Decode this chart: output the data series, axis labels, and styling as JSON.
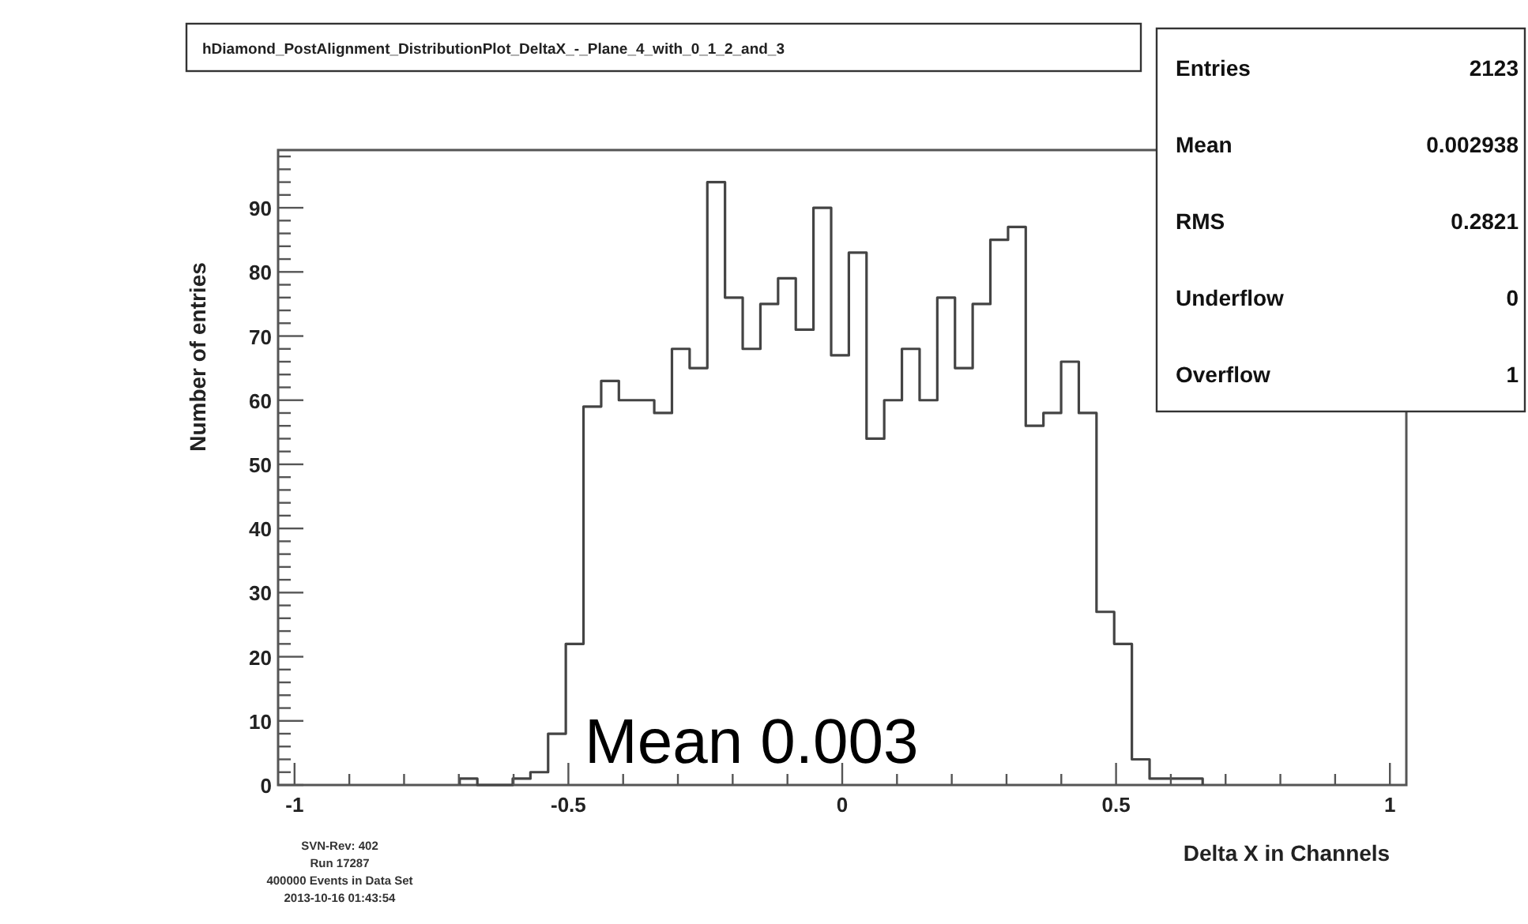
{
  "chart_data": {
    "type": "histogram",
    "title": "hDiamond_PostAlignment_DistributionPlot_DeltaX_-_Plane_4_with_0_1_2_and_3",
    "xlabel": "Delta X in Channels",
    "ylabel": "Number of entries",
    "bins": [
      -0.6985,
      -0.6662,
      -0.6339,
      -0.6016,
      -0.5693,
      -0.537,
      -0.5047,
      -0.4724,
      -0.4401,
      -0.4078,
      -0.3755,
      -0.3432,
      -0.3109,
      -0.2786,
      -0.2463,
      -0.214,
      -0.1817,
      -0.1494,
      -0.1171,
      -0.0848,
      -0.0525,
      -0.0202,
      0.0121,
      0.0444,
      0.0767,
      0.109,
      0.1413,
      0.1736,
      0.2059,
      0.2382,
      0.2705,
      0.3028,
      0.3351,
      0.3674,
      0.3997,
      0.432,
      0.4643,
      0.4966,
      0.5289,
      0.5612,
      0.5935,
      0.6258,
      0.6581
    ],
    "values": [
      1,
      0,
      0,
      1,
      2,
      8,
      22,
      59,
      63,
      60,
      60,
      58,
      68,
      65,
      94,
      76,
      68,
      75,
      79,
      71,
      90,
      67,
      83,
      54,
      60,
      68,
      60,
      76,
      65,
      75,
      85,
      87,
      56,
      58,
      66,
      58,
      27,
      22,
      4,
      1,
      1,
      1
    ],
    "color": "#444444",
    "xlim": [
      -1.03,
      1.03
    ],
    "xticks": [
      -1,
      {
        "value": -0.9,
        "label": null
      },
      {
        "value": -0.8,
        "label": null
      },
      {
        "value": -0.7,
        "label": null
      },
      {
        "value": -0.6,
        "label": null
      },
      -0.5,
      {
        "value": -0.4,
        "label": null
      },
      {
        "value": -0.3,
        "label": null
      },
      {
        "value": -0.2,
        "label": null
      },
      {
        "value": -0.1,
        "label": null
      },
      0,
      {
        "value": 0.1,
        "label": null
      },
      {
        "value": 0.2,
        "label": null
      },
      {
        "value": 0.3,
        "label": null
      },
      {
        "value": 0.4,
        "label": null
      },
      0.5,
      {
        "value": 0.6,
        "label": null
      },
      {
        "value": 0.7,
        "label": null
      },
      {
        "value": 0.8,
        "label": null
      },
      {
        "value": 0.9,
        "label": null
      },
      1
    ],
    "ylim": [
      0,
      99
    ],
    "yticks": [
      0,
      {
        "value": 2,
        "label": null
      },
      {
        "value": 4,
        "label": null
      },
      {
        "value": 6,
        "label": null
      },
      {
        "value": 8,
        "label": null
      },
      10,
      {
        "value": 12,
        "label": null
      },
      {
        "value": 14,
        "label": null
      },
      {
        "value": 16,
        "label": null
      },
      {
        "value": 18,
        "label": null
      },
      20,
      {
        "value": 22,
        "label": null
      },
      {
        "value": 24,
        "label": null
      },
      {
        "value": 26,
        "label": null
      },
      {
        "value": 28,
        "label": null
      },
      30,
      {
        "value": 32,
        "label": null
      },
      {
        "value": 34,
        "label": null
      },
      {
        "value": 36,
        "label": null
      },
      {
        "value": 38,
        "label": null
      },
      40,
      {
        "value": 42,
        "label": null
      },
      {
        "value": 44,
        "label": null
      },
      {
        "value": 46,
        "label": null
      },
      {
        "value": 48,
        "label": null
      },
      50,
      {
        "value": 52,
        "label": null
      },
      {
        "value": 54,
        "label": null
      },
      {
        "value": 56,
        "label": null
      },
      {
        "value": 58,
        "label": null
      },
      60,
      {
        "value": 62,
        "label": null
      },
      {
        "value": 64,
        "label": null
      },
      {
        "value": 66,
        "label": null
      },
      {
        "value": 68,
        "label": null
      },
      70,
      {
        "value": 72,
        "label": null
      },
      {
        "value": 74,
        "label": null
      },
      {
        "value": 76,
        "label": null
      },
      {
        "value": 78,
        "label": null
      },
      80,
      {
        "value": 82,
        "label": null
      },
      {
        "value": 84,
        "label": null
      },
      {
        "value": 86,
        "label": null
      },
      {
        "value": 88,
        "label": null
      },
      90,
      {
        "value": 92,
        "label": null
      },
      {
        "value": 94,
        "label": null
      },
      {
        "value": 96,
        "label": null
      },
      {
        "value": 98,
        "label": null
      }
    ],
    "grid": false,
    "annotations": [
      "Mean 0.003",
      "Entries",
      "2123",
      "Mean",
      "0.002938",
      "RMS",
      "0.2821",
      "Underflow",
      "0",
      "Overflow",
      "1",
      "SVN-Rev: 402",
      "Run 17287",
      "400000 Events in Data Set",
      "2013-10-16 01:43:54"
    ]
  }
}
